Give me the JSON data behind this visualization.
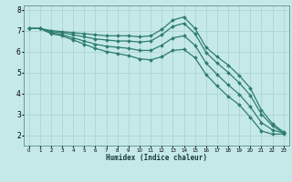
{
  "xlabel": "Humidex (Indice chaleur)",
  "ylabel": "",
  "background_color": "#c5e8e8",
  "grid_color": "#aad0d0",
  "line_color": "#2e7d6e",
  "xlim": [
    -0.5,
    23.5
  ],
  "ylim": [
    1.5,
    8.2
  ],
  "x_ticks": [
    0,
    1,
    2,
    3,
    4,
    5,
    6,
    7,
    8,
    9,
    10,
    11,
    12,
    13,
    14,
    15,
    16,
    17,
    18,
    19,
    20,
    21,
    22,
    23
  ],
  "y_ticks": [
    2,
    3,
    4,
    5,
    6,
    7,
    8
  ],
  "series": [
    {
      "x": [
        0,
        1,
        2,
        3,
        4,
        5,
        6,
        7,
        8,
        9,
        10,
        11,
        12,
        13,
        14,
        15,
        16,
        17,
        18,
        19,
        20,
        21,
        22,
        23
      ],
      "y": [
        7.1,
        7.1,
        7.0,
        6.95,
        6.9,
        6.85,
        6.8,
        6.75,
        6.75,
        6.75,
        6.7,
        6.75,
        7.05,
        7.5,
        7.65,
        7.1,
        6.2,
        5.75,
        5.35,
        4.85,
        4.25,
        3.2,
        2.55,
        2.15
      ],
      "marker": "D",
      "markersize": 2.0,
      "linewidth": 0.9
    },
    {
      "x": [
        0,
        1,
        2,
        3,
        4,
        5,
        6,
        7,
        8,
        9,
        10,
        11,
        12,
        13,
        14,
        15,
        16,
        17,
        18,
        19,
        20,
        21,
        22,
        23
      ],
      "y": [
        7.1,
        7.1,
        6.95,
        6.9,
        6.8,
        6.7,
        6.6,
        6.55,
        6.5,
        6.5,
        6.45,
        6.5,
        6.8,
        7.2,
        7.35,
        6.85,
        5.95,
        5.45,
        5.0,
        4.5,
        3.9,
        3.0,
        2.45,
        2.1
      ],
      "marker": "D",
      "markersize": 2.0,
      "linewidth": 0.9
    },
    {
      "x": [
        0,
        1,
        2,
        3,
        4,
        5,
        6,
        7,
        8,
        9,
        10,
        11,
        12,
        13,
        14,
        15,
        16,
        17,
        18,
        19,
        20,
        21,
        22,
        23
      ],
      "y": [
        7.1,
        7.1,
        6.9,
        6.8,
        6.65,
        6.5,
        6.35,
        6.25,
        6.2,
        6.15,
        6.05,
        6.05,
        6.3,
        6.65,
        6.75,
        6.3,
        5.45,
        4.9,
        4.4,
        3.95,
        3.35,
        2.6,
        2.25,
        2.1
      ],
      "marker": "D",
      "markersize": 2.0,
      "linewidth": 0.9
    },
    {
      "x": [
        0,
        1,
        2,
        3,
        4,
        5,
        6,
        7,
        8,
        9,
        10,
        11,
        12,
        13,
        14,
        15,
        16,
        17,
        18,
        19,
        20,
        21,
        22,
        23
      ],
      "y": [
        7.1,
        7.1,
        6.85,
        6.75,
        6.55,
        6.35,
        6.15,
        6.0,
        5.9,
        5.8,
        5.65,
        5.6,
        5.75,
        6.05,
        6.1,
        5.7,
        4.9,
        4.35,
        3.85,
        3.45,
        2.85,
        2.2,
        2.05,
        2.05
      ],
      "marker": "D",
      "markersize": 2.0,
      "linewidth": 0.9
    }
  ]
}
